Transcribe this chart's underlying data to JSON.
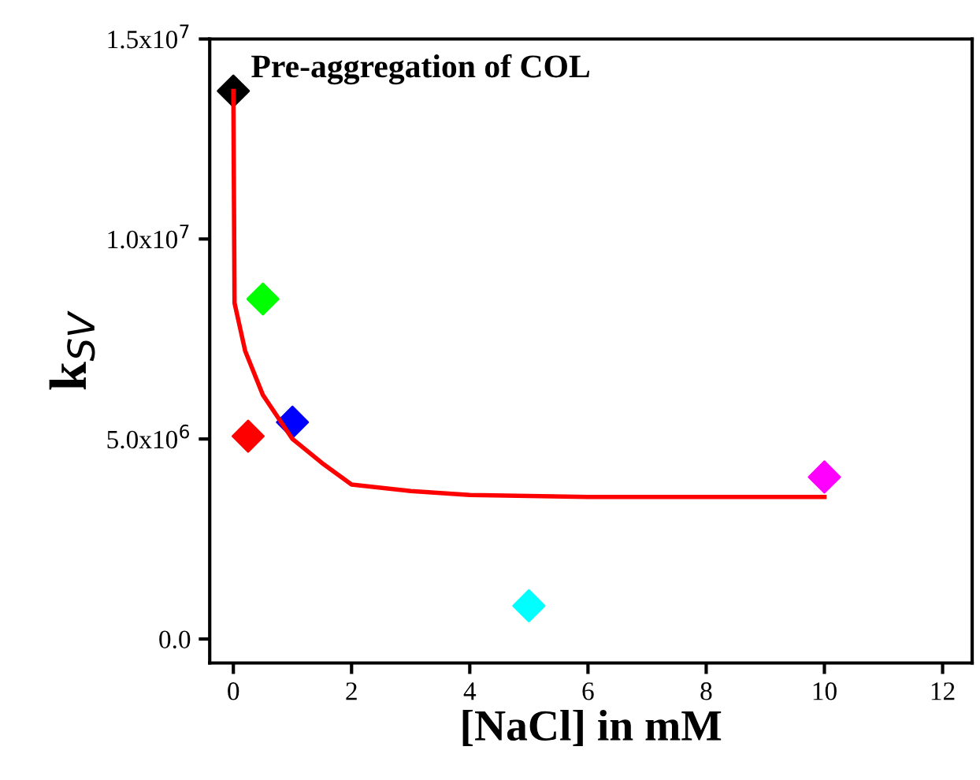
{
  "chart_data": {
    "type": "scatter",
    "xlabel": "[NaCl] in mM",
    "ylabel": "k$_{SV}$",
    "annotations": [
      {
        "text": "Pre-aggregation of COL",
        "x": 0,
        "y": 13700000
      }
    ],
    "xlim": [
      -0.4,
      12.5
    ],
    "xticks": [
      0,
      2,
      4,
      6,
      8,
      10,
      12
    ],
    "ylim": [
      -600000,
      15000000
    ],
    "yticks": [
      {
        "value": 0,
        "label": "0.0"
      },
      {
        "value": 5000000,
        "label": "5.0x10$^{6}$"
      },
      {
        "value": 10000000,
        "label": "1.0x10$^{7}$"
      },
      {
        "value": 15000000,
        "label": "1.5x10$^{7}$"
      }
    ],
    "marker": "diamond",
    "grid": false,
    "legend": false,
    "series": [
      {
        "type": "line",
        "color": "#ff0000",
        "marker": "none",
        "x": [
          0,
          0.02,
          0.2,
          0.5,
          1,
          1.5,
          2,
          3,
          4,
          6,
          8,
          10
        ],
        "values": [
          13700000,
          8400000,
          7200000,
          6100000,
          5000000,
          4400000,
          3860000,
          3700000,
          3600000,
          3550000,
          3550000,
          3550000
        ]
      },
      {
        "type": "scatter",
        "x": [
          0,
          0.25,
          0.5,
          1,
          5,
          10
        ],
        "values": [
          13700000,
          5070000,
          8500000,
          5420000,
          830000,
          4050000
        ],
        "colors": [
          "#000000",
          "#ff0000",
          "#00ff00",
          "#0000ff",
          "#00ffff",
          "#ff00ff"
        ]
      }
    ]
  }
}
